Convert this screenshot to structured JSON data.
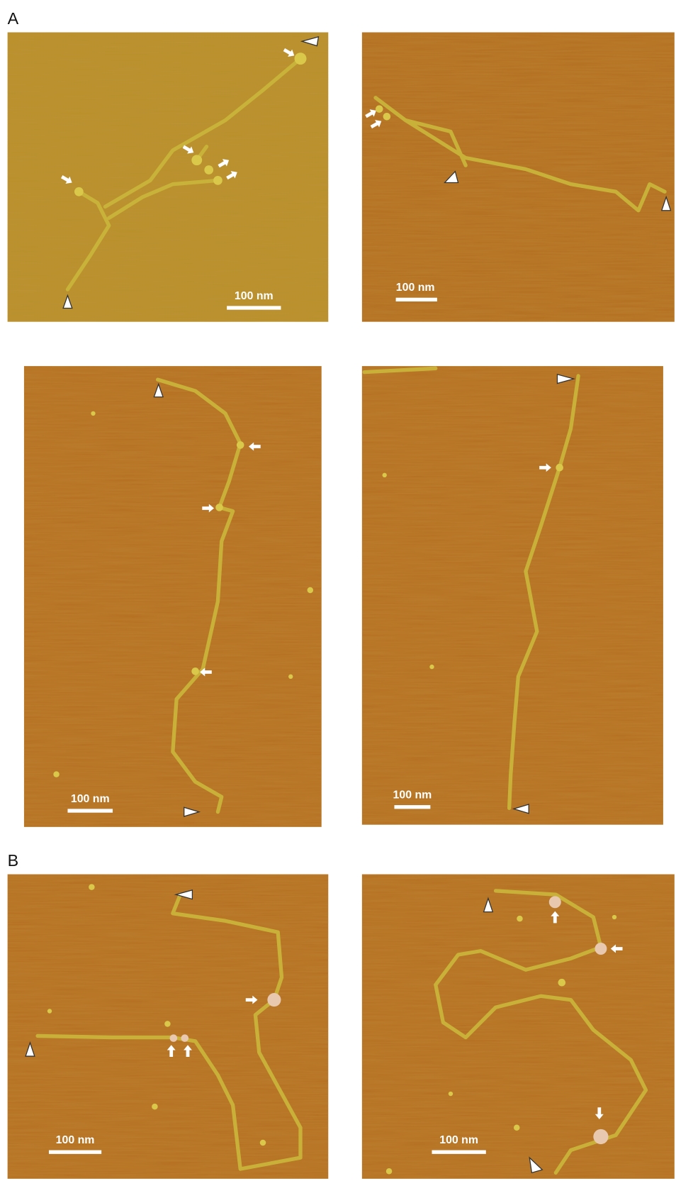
{
  "figure": {
    "panels": [
      {
        "label": "A",
        "images": [
          {
            "scale_bar": "100 nm"
          },
          {
            "scale_bar": "100 nm"
          },
          {
            "scale_bar": "100 nm"
          },
          {
            "scale_bar": "100 nm"
          }
        ]
      },
      {
        "label": "B",
        "images": [
          {
            "scale_bar": "100 nm"
          },
          {
            "scale_bar": "100 nm"
          }
        ]
      }
    ]
  }
}
